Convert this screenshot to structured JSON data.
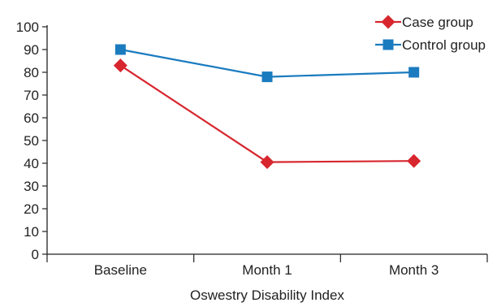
{
  "chart_data": {
    "type": "line",
    "title": "",
    "xlabel": "Oswestry Disability Index",
    "ylabel": "",
    "categories": [
      "Baseline",
      "Month 1",
      "Month 3"
    ],
    "ylim": [
      0,
      100
    ],
    "yticks": [
      "0",
      "10",
      "20",
      "30",
      "40",
      "50",
      "60",
      "70",
      "80",
      "90",
      "100"
    ],
    "legend_position": "top-right",
    "grid": false,
    "series": [
      {
        "name": "Case group",
        "values": [
          83,
          40.5,
          41
        ],
        "color": "#d7262e",
        "marker": "diamond"
      },
      {
        "name": "Control group",
        "values": [
          90,
          78,
          80
        ],
        "color": "#1a7bbf",
        "marker": "square"
      }
    ]
  }
}
